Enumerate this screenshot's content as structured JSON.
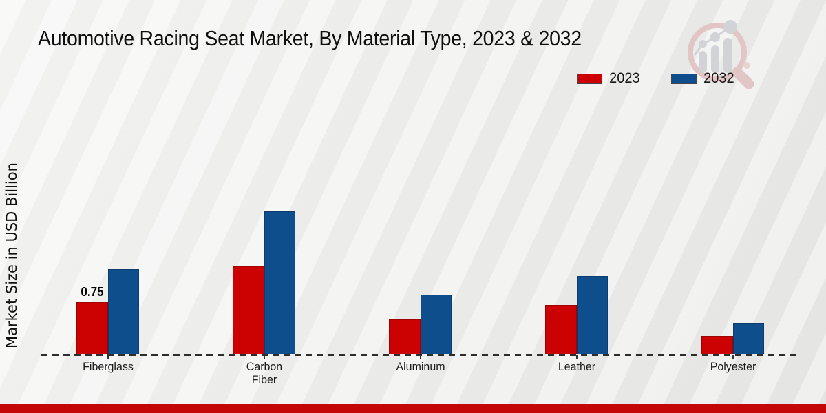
{
  "title": "Automotive Racing Seat Market, By Material Type, 2023 & 2032",
  "ylabel": "Market Size in USD Billion",
  "legend": {
    "items": [
      {
        "label": "2023",
        "color": "#cc0202"
      },
      {
        "label": "2032",
        "color": "#0f4e8c"
      }
    ]
  },
  "chart_data": {
    "type": "bar",
    "title": "Automotive Racing Seat Market, By Material Type, 2023 & 2032",
    "xlabel": "",
    "ylabel": "Market Size in USD Billion",
    "categories": [
      "Fiberglass",
      "Carbon Fiber",
      "Aluminum",
      "Leather",
      "Polyester"
    ],
    "series": [
      {
        "name": "2023",
        "color": "#cc0202",
        "values": [
          0.75,
          1.26,
          0.5,
          0.71,
          0.27
        ]
      },
      {
        "name": "2032",
        "color": "#0f4e8c",
        "values": [
          1.22,
          2.05,
          0.86,
          1.12,
          0.45
        ]
      }
    ],
    "annotations": [
      {
        "series": "2023",
        "category": "Fiberglass",
        "text": "0.75"
      }
    ],
    "ylim": [
      0,
      2.2
    ],
    "grid": false,
    "axis_style": "dashed-baseline-only",
    "legend_position": "top-right"
  },
  "footer": {
    "bar_color": "#c40606"
  },
  "watermark": {
    "name": "magnifier-chart-logo",
    "ring_color": "#e2c6c6",
    "glyph_color": "#d2d3d7"
  }
}
